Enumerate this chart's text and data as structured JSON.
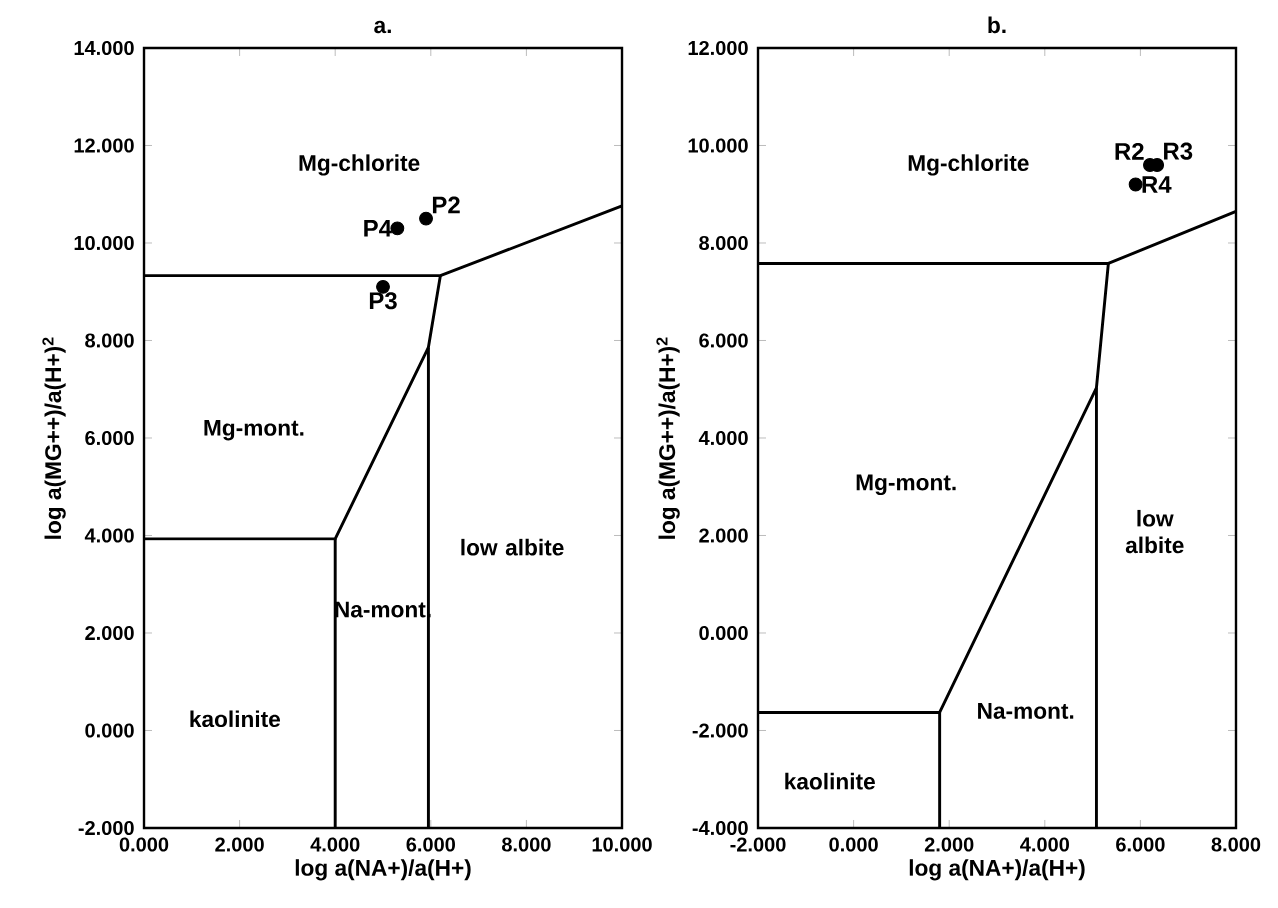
{
  "chart_data": [
    {
      "type": "scatter",
      "title": "a.",
      "xlabel": "log a(NA+)/a(H+)",
      "ylabel": "log a(MG++)/a(H+)$^{2}$",
      "xlim": [
        0,
        10
      ],
      "ylim": [
        -2,
        14
      ],
      "xticks": [
        {
          "value": 0,
          "label": "0.000"
        },
        {
          "value": 2,
          "label": "2.000"
        },
        {
          "value": 4,
          "label": "4.000"
        },
        {
          "value": 6,
          "label": "6.000"
        },
        {
          "value": 8,
          "label": "8.000"
        },
        {
          "value": 10,
          "label": "10.000"
        }
      ],
      "yticks": [
        {
          "value": -2,
          "label": "-2.000"
        },
        {
          "value": 0,
          "label": "0.000"
        },
        {
          "value": 2,
          "label": "2.000"
        },
        {
          "value": 4,
          "label": "4.000"
        },
        {
          "value": 6,
          "label": "6.000"
        },
        {
          "value": 8,
          "label": "8.000"
        },
        {
          "value": 10,
          "label": "10.000"
        },
        {
          "value": 12,
          "label": "12.000"
        },
        {
          "value": 14,
          "label": "14.000"
        }
      ],
      "legend": false,
      "grid": false,
      "series": [
        {
          "type": "line",
          "color": "#000000",
          "x": [
            0,
            6.2,
            10
          ],
          "values": [
            9.33,
            9.33,
            10.76
          ]
        },
        {
          "type": "line",
          "color": "#000000",
          "x": [
            6.2,
            5.95,
            5.95
          ],
          "values": [
            9.33,
            7.86,
            -2
          ]
        },
        {
          "type": "line",
          "color": "#000000",
          "x": [
            5.95,
            4.0,
            0
          ],
          "values": [
            7.86,
            3.93,
            3.93
          ]
        },
        {
          "type": "line",
          "color": "#000000",
          "x": [
            4.0,
            4.0
          ],
          "values": [
            3.93,
            -2
          ]
        },
        {
          "type": "scatter",
          "name": "P4",
          "color": "#000000",
          "x": [
            5.3
          ],
          "values": [
            10.3
          ]
        },
        {
          "type": "scatter",
          "name": "P2",
          "color": "#000000",
          "x": [
            5.9
          ],
          "values": [
            10.5
          ]
        },
        {
          "type": "scatter",
          "name": "P3",
          "color": "#000000",
          "x": [
            5.0
          ],
          "values": [
            9.1
          ]
        }
      ],
      "annotations": [
        "Mg-chlorite",
        "Mg-mont.",
        "low albite",
        "Na-mont.",
        "kaolinite"
      ]
    },
    {
      "type": "scatter",
      "title": "b.",
      "xlabel": "log a(NA+)/a(H+)",
      "ylabel": "log a(MG++)/a(H+)$^{2}$",
      "xlim": [
        -2,
        8
      ],
      "ylim": [
        -4,
        12
      ],
      "xticks": [
        {
          "value": -2,
          "label": "-2.000"
        },
        {
          "value": 0,
          "label": "0.000"
        },
        {
          "value": 2,
          "label": "2.000"
        },
        {
          "value": 4,
          "label": "4.000"
        },
        {
          "value": 6,
          "label": "6.000"
        },
        {
          "value": 8,
          "label": "8.000"
        }
      ],
      "yticks": [
        {
          "value": -4,
          "label": "-4.000"
        },
        {
          "value": -2,
          "label": "-2.000"
        },
        {
          "value": 0,
          "label": "0.000"
        },
        {
          "value": 2,
          "label": "2.000"
        },
        {
          "value": 4,
          "label": "4.000"
        },
        {
          "value": 6,
          "label": "6.000"
        },
        {
          "value": 8,
          "label": "8.000"
        },
        {
          "value": 10,
          "label": "10.000"
        },
        {
          "value": 12,
          "label": "12.000"
        }
      ],
      "legend": false,
      "grid": false,
      "series": [
        {
          "type": "line",
          "color": "#000000",
          "x": [
            -2,
            5.33,
            8
          ],
          "values": [
            7.58,
            7.58,
            8.65
          ]
        },
        {
          "type": "line",
          "color": "#000000",
          "x": [
            5.33,
            5.08,
            5.08
          ],
          "values": [
            7.58,
            5.03,
            -4
          ]
        },
        {
          "type": "line",
          "color": "#000000",
          "x": [
            5.08,
            1.8,
            -2
          ],
          "values": [
            5.03,
            -1.63,
            -1.63
          ]
        },
        {
          "type": "line",
          "color": "#000000",
          "x": [
            1.8,
            1.8
          ],
          "values": [
            -1.63,
            -4
          ]
        },
        {
          "type": "scatter",
          "name": "R2",
          "color": "#000000",
          "x": [
            6.2
          ],
          "values": [
            9.6
          ]
        },
        {
          "type": "scatter",
          "name": "R3",
          "color": "#000000",
          "x": [
            6.35
          ],
          "values": [
            9.6
          ]
        },
        {
          "type": "scatter",
          "name": "R4",
          "color": "#000000",
          "x": [
            5.9
          ],
          "values": [
            9.2
          ]
        }
      ],
      "annotations": [
        "Mg-chlorite",
        "Mg-mont.",
        "low albite",
        "Na-mont.",
        "kaolinite"
      ]
    }
  ]
}
